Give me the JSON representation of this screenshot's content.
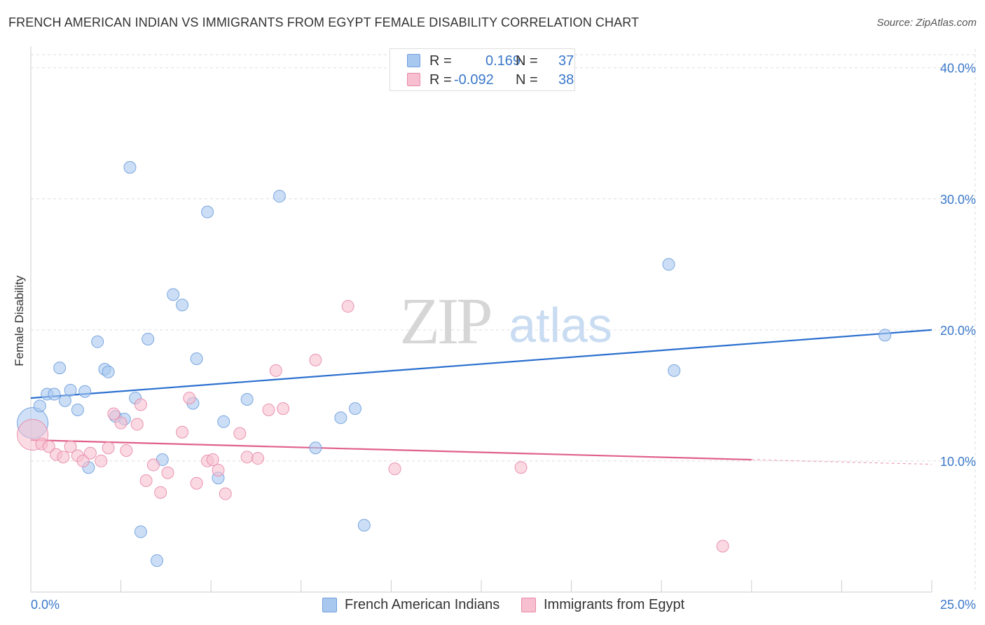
{
  "header": {
    "title": "FRENCH AMERICAN INDIAN VS IMMIGRANTS FROM EGYPT FEMALE DISABILITY CORRELATION CHART",
    "source": "Source: ZipAtlas.com"
  },
  "watermark": {
    "zip": "ZIP",
    "atlas": "atlas"
  },
  "legend": {
    "rows": [
      {
        "r_label": "R =",
        "r_value": "0.169",
        "n_label": "N =",
        "n_value": "37",
        "color": "#a9c8f0",
        "border": "#6f9fdc"
      },
      {
        "r_label": "R =",
        "r_value": "-0.092",
        "n_label": "N =",
        "n_value": "38",
        "color": "#f7bfd0",
        "border": "#e889a8"
      }
    ]
  },
  "bottom_legend": {
    "items": [
      {
        "name": "French American Indians",
        "color": "#a9c8f0",
        "border": "#6f9fdc"
      },
      {
        "name": "Immigrants from Egypt",
        "color": "#f7bfd0",
        "border": "#e889a8"
      }
    ]
  },
  "chart_data": {
    "type": "scatter",
    "title": "FRENCH AMERICAN INDIAN VS IMMIGRANTS FROM EGYPT FEMALE DISABILITY CORRELATION CHART",
    "xlabel": "",
    "ylabel": "Female Disability",
    "xlim": [
      0,
      25
    ],
    "ylim": [
      0,
      41
    ],
    "x_tick_labels": [
      "0.0%",
      "25.0%"
    ],
    "y_ticks": [
      10,
      20,
      30,
      40
    ],
    "y_tick_labels": [
      "10.0%",
      "20.0%",
      "30.0%",
      "40.0%"
    ],
    "grid": true,
    "colors": {
      "blue_fill": "#a9c8f0",
      "blue_stroke": "#6f9fdc",
      "blue_line": "#2a6fcf",
      "pink_fill": "#f7bfd0",
      "pink_stroke": "#e889a8",
      "pink_line": "#e0608a",
      "tick_label": "#3a78c9",
      "grid": "#dddddd",
      "axis": "#cccccc"
    },
    "series": [
      {
        "name": "French American Indians",
        "R": 0.169,
        "N": 37,
        "trend": {
          "x": [
            0,
            25
          ],
          "y": [
            14.8,
            20.0
          ]
        },
        "points": [
          {
            "x": 0.05,
            "y": 12.9,
            "big": true
          },
          {
            "x": 0.25,
            "y": 14.2
          },
          {
            "x": 0.45,
            "y": 15.1
          },
          {
            "x": 0.65,
            "y": 15.1
          },
          {
            "x": 0.8,
            "y": 17.1
          },
          {
            "x": 0.95,
            "y": 14.6
          },
          {
            "x": 1.1,
            "y": 15.4
          },
          {
            "x": 1.3,
            "y": 13.9
          },
          {
            "x": 1.5,
            "y": 15.3
          },
          {
            "x": 1.6,
            "y": 9.5
          },
          {
            "x": 1.85,
            "y": 19.1
          },
          {
            "x": 2.05,
            "y": 17.0
          },
          {
            "x": 2.15,
            "y": 16.8
          },
          {
            "x": 2.35,
            "y": 13.4
          },
          {
            "x": 2.6,
            "y": 13.2
          },
          {
            "x": 2.75,
            "y": 32.4
          },
          {
            "x": 2.9,
            "y": 14.8
          },
          {
            "x": 3.05,
            "y": 4.6
          },
          {
            "x": 3.25,
            "y": 19.3
          },
          {
            "x": 3.5,
            "y": 2.4
          },
          {
            "x": 3.65,
            "y": 10.1
          },
          {
            "x": 3.95,
            "y": 22.7
          },
          {
            "x": 4.2,
            "y": 21.9
          },
          {
            "x": 4.5,
            "y": 14.4
          },
          {
            "x": 4.6,
            "y": 17.8
          },
          {
            "x": 4.9,
            "y": 29.0
          },
          {
            "x": 5.2,
            "y": 8.7
          },
          {
            "x": 5.35,
            "y": 13.0
          },
          {
            "x": 6.0,
            "y": 14.7
          },
          {
            "x": 6.9,
            "y": 30.2
          },
          {
            "x": 7.9,
            "y": 11.0
          },
          {
            "x": 8.6,
            "y": 13.3
          },
          {
            "x": 9.0,
            "y": 14.0
          },
          {
            "x": 9.25,
            "y": 5.1
          },
          {
            "x": 17.7,
            "y": 25.0
          },
          {
            "x": 17.85,
            "y": 16.9
          },
          {
            "x": 23.7,
            "y": 19.6
          }
        ]
      },
      {
        "name": "Immigrants from Egypt",
        "R": -0.092,
        "N": 38,
        "trend": {
          "x": [
            0,
            20
          ],
          "y": [
            11.6,
            10.1
          ]
        },
        "trend_dashed": {
          "x": [
            20,
            25
          ],
          "y": [
            10.1,
            9.75
          ]
        },
        "points": [
          {
            "x": 0.05,
            "y": 12.0,
            "big": true
          },
          {
            "x": 0.3,
            "y": 11.3
          },
          {
            "x": 0.5,
            "y": 11.1
          },
          {
            "x": 0.7,
            "y": 10.5
          },
          {
            "x": 0.9,
            "y": 10.3
          },
          {
            "x": 1.1,
            "y": 11.1
          },
          {
            "x": 1.3,
            "y": 10.4
          },
          {
            "x": 1.45,
            "y": 10.0
          },
          {
            "x": 1.65,
            "y": 10.6
          },
          {
            "x": 1.95,
            "y": 10.0
          },
          {
            "x": 2.15,
            "y": 11.0
          },
          {
            "x": 2.3,
            "y": 13.6
          },
          {
            "x": 2.5,
            "y": 12.9
          },
          {
            "x": 2.65,
            "y": 10.8
          },
          {
            "x": 2.95,
            "y": 12.8
          },
          {
            "x": 3.05,
            "y": 14.3
          },
          {
            "x": 3.2,
            "y": 8.5
          },
          {
            "x": 3.4,
            "y": 9.7
          },
          {
            "x": 3.6,
            "y": 7.6
          },
          {
            "x": 3.8,
            "y": 9.1
          },
          {
            "x": 4.2,
            "y": 12.2
          },
          {
            "x": 4.4,
            "y": 14.8
          },
          {
            "x": 4.6,
            "y": 8.3
          },
          {
            "x": 4.9,
            "y": 10.0
          },
          {
            "x": 5.05,
            "y": 10.1
          },
          {
            "x": 5.2,
            "y": 9.3
          },
          {
            "x": 5.4,
            "y": 7.5
          },
          {
            "x": 5.8,
            "y": 12.1
          },
          {
            "x": 6.0,
            "y": 10.3
          },
          {
            "x": 6.3,
            "y": 10.2
          },
          {
            "x": 6.6,
            "y": 13.9
          },
          {
            "x": 6.8,
            "y": 16.9
          },
          {
            "x": 7.0,
            "y": 14.0
          },
          {
            "x": 7.9,
            "y": 17.7
          },
          {
            "x": 8.8,
            "y": 21.8
          },
          {
            "x": 10.1,
            "y": 9.4
          },
          {
            "x": 13.6,
            "y": 9.5
          },
          {
            "x": 19.2,
            "y": 3.5
          }
        ]
      }
    ]
  }
}
